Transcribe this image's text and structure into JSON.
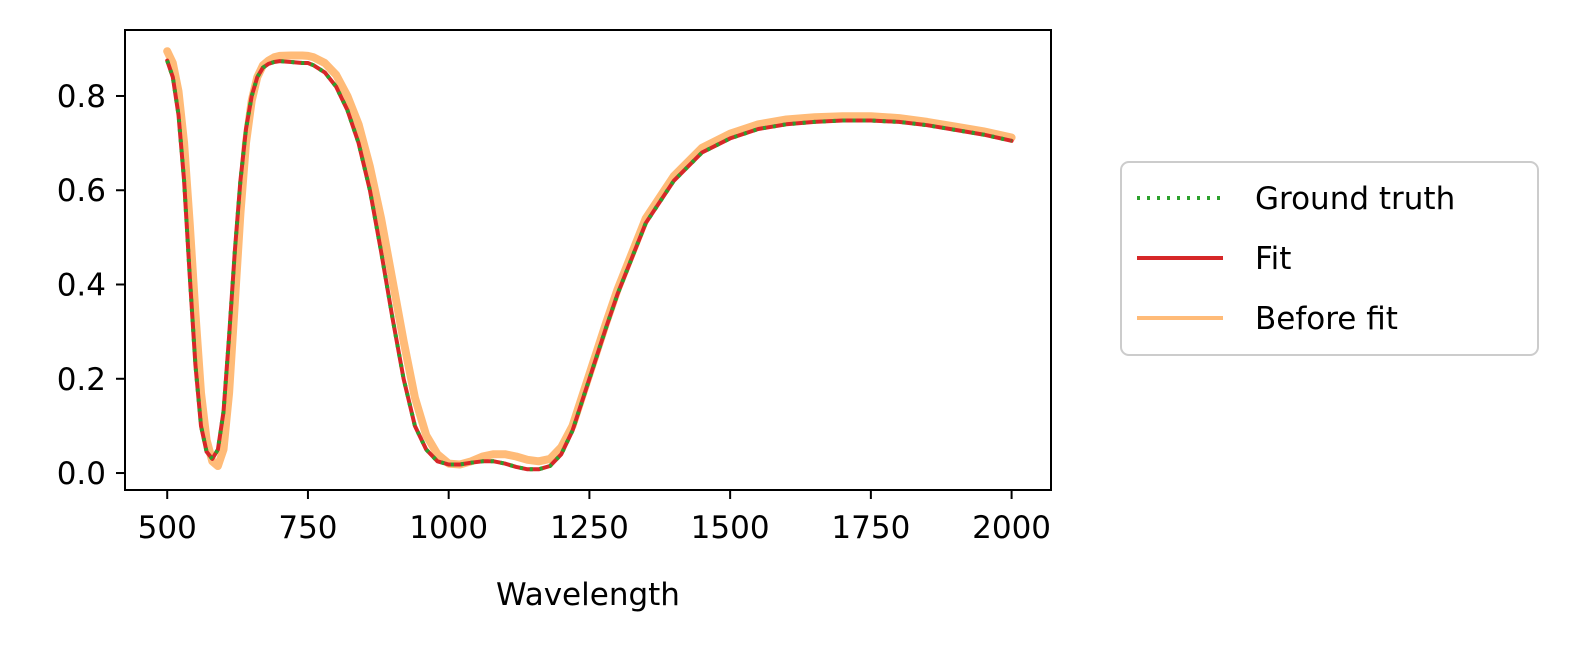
{
  "chart_data": {
    "type": "line",
    "title": "",
    "xlabel": "Wavelength",
    "ylabel": "",
    "xlim": [
      425,
      2070
    ],
    "ylim": [
      -0.036,
      0.94
    ],
    "xticks": [
      500,
      750,
      1000,
      1250,
      1500,
      1750,
      2000
    ],
    "xtick_labels": [
      "500",
      "750",
      "1000",
      "1250",
      "1500",
      "1750",
      "2000"
    ],
    "yticks": [
      0.0,
      0.2,
      0.4,
      0.6,
      0.8
    ],
    "ytick_labels": [
      "0.0",
      "0.2",
      "0.4",
      "0.6",
      "0.8"
    ],
    "grid": false,
    "legend_position": "right, outside plot",
    "series": [
      {
        "name": "Ground truth",
        "color": "#2ca02c",
        "style": "dotted",
        "x": [
          500,
          510,
          520,
          530,
          540,
          550,
          560,
          570,
          580,
          590,
          600,
          610,
          620,
          630,
          640,
          650,
          660,
          670,
          680,
          690,
          700,
          720,
          740,
          750,
          760,
          780,
          800,
          820,
          840,
          860,
          880,
          900,
          920,
          940,
          960,
          980,
          1000,
          1020,
          1040,
          1060,
          1080,
          1100,
          1120,
          1140,
          1160,
          1180,
          1200,
          1220,
          1250,
          1280,
          1300,
          1350,
          1400,
          1450,
          1500,
          1550,
          1600,
          1650,
          1700,
          1750,
          1800,
          1850,
          1900,
          1950,
          2000
        ],
        "y": [
          0.875,
          0.84,
          0.76,
          0.62,
          0.42,
          0.23,
          0.1,
          0.045,
          0.03,
          0.05,
          0.13,
          0.29,
          0.47,
          0.62,
          0.73,
          0.8,
          0.84,
          0.86,
          0.868,
          0.872,
          0.874,
          0.872,
          0.87,
          0.87,
          0.865,
          0.85,
          0.82,
          0.77,
          0.7,
          0.6,
          0.47,
          0.33,
          0.2,
          0.1,
          0.05,
          0.025,
          0.018,
          0.018,
          0.022,
          0.025,
          0.025,
          0.02,
          0.013,
          0.008,
          0.008,
          0.015,
          0.04,
          0.09,
          0.2,
          0.31,
          0.38,
          0.53,
          0.62,
          0.68,
          0.71,
          0.73,
          0.74,
          0.745,
          0.748,
          0.748,
          0.745,
          0.738,
          0.728,
          0.718,
          0.705
        ]
      },
      {
        "name": "Fit",
        "color": "#d62728",
        "style": "solid",
        "x": [
          500,
          510,
          520,
          530,
          540,
          550,
          560,
          570,
          580,
          590,
          600,
          610,
          620,
          630,
          640,
          650,
          660,
          670,
          680,
          690,
          700,
          720,
          740,
          750,
          760,
          780,
          800,
          820,
          840,
          860,
          880,
          900,
          920,
          940,
          960,
          980,
          1000,
          1020,
          1040,
          1060,
          1080,
          1100,
          1120,
          1140,
          1160,
          1180,
          1200,
          1220,
          1250,
          1280,
          1300,
          1350,
          1400,
          1450,
          1500,
          1550,
          1600,
          1650,
          1700,
          1750,
          1800,
          1850,
          1900,
          1950,
          2000
        ],
        "y": [
          0.875,
          0.84,
          0.76,
          0.62,
          0.42,
          0.23,
          0.1,
          0.045,
          0.03,
          0.05,
          0.13,
          0.29,
          0.47,
          0.62,
          0.73,
          0.8,
          0.84,
          0.86,
          0.868,
          0.872,
          0.874,
          0.872,
          0.87,
          0.87,
          0.865,
          0.85,
          0.82,
          0.77,
          0.7,
          0.6,
          0.47,
          0.33,
          0.2,
          0.1,
          0.05,
          0.025,
          0.018,
          0.018,
          0.022,
          0.025,
          0.025,
          0.02,
          0.013,
          0.008,
          0.008,
          0.015,
          0.04,
          0.09,
          0.2,
          0.31,
          0.38,
          0.53,
          0.62,
          0.68,
          0.71,
          0.73,
          0.74,
          0.745,
          0.748,
          0.748,
          0.745,
          0.738,
          0.728,
          0.718,
          0.705
        ]
      },
      {
        "name": "Before fit",
        "color": "#ffbb78",
        "style": "solid",
        "x": [
          500,
          510,
          520,
          530,
          540,
          550,
          560,
          570,
          580,
          590,
          600,
          610,
          620,
          630,
          640,
          650,
          660,
          670,
          680,
          690,
          700,
          720,
          740,
          750,
          760,
          780,
          800,
          820,
          840,
          860,
          880,
          900,
          920,
          940,
          960,
          980,
          1000,
          1020,
          1040,
          1060,
          1080,
          1100,
          1120,
          1140,
          1160,
          1180,
          1200,
          1220,
          1250,
          1280,
          1300,
          1350,
          1400,
          1450,
          1500,
          1550,
          1600,
          1650,
          1700,
          1750,
          1800,
          1850,
          1900,
          1950,
          2000
        ],
        "y": [
          0.895,
          0.87,
          0.81,
          0.7,
          0.53,
          0.34,
          0.17,
          0.07,
          0.025,
          0.015,
          0.05,
          0.17,
          0.36,
          0.55,
          0.7,
          0.79,
          0.84,
          0.865,
          0.875,
          0.882,
          0.885,
          0.886,
          0.886,
          0.885,
          0.882,
          0.87,
          0.845,
          0.8,
          0.74,
          0.65,
          0.54,
          0.41,
          0.28,
          0.16,
          0.08,
          0.04,
          0.02,
          0.018,
          0.025,
          0.035,
          0.04,
          0.04,
          0.035,
          0.028,
          0.025,
          0.03,
          0.055,
          0.1,
          0.21,
          0.32,
          0.39,
          0.54,
          0.63,
          0.69,
          0.72,
          0.74,
          0.75,
          0.755,
          0.757,
          0.757,
          0.753,
          0.745,
          0.735,
          0.725,
          0.712
        ]
      }
    ]
  }
}
